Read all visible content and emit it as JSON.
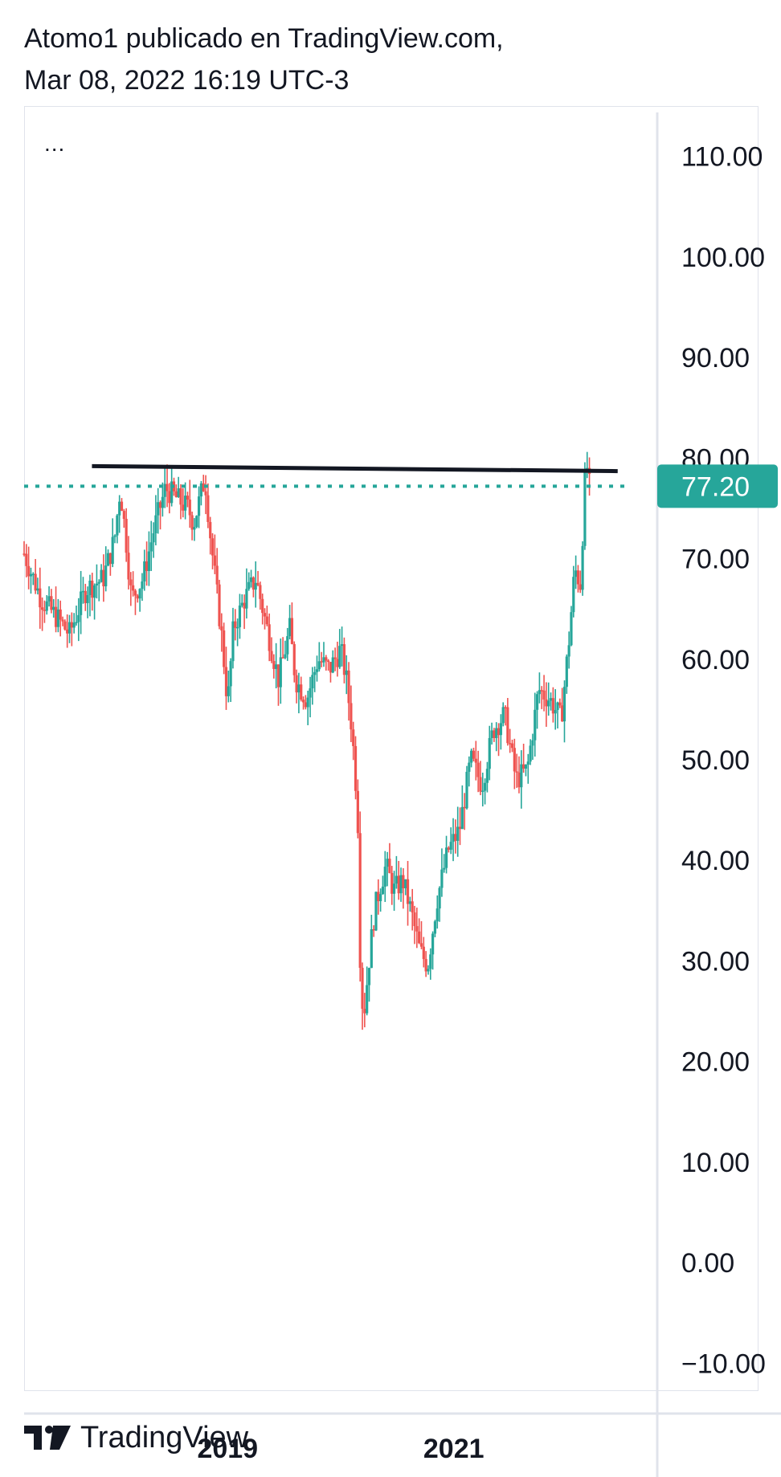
{
  "header": {
    "line1": "Atomo1 publicado en TradingView.com,",
    "line2": "Mar 08, 2022 16:19 UTC-3"
  },
  "toolbar": {
    "menu_label": "..."
  },
  "brand": {
    "name": "TradingView",
    "logo_icon": "tradingview-logo-icon"
  },
  "colors": {
    "up": "#26a69a",
    "down": "#ef5350",
    "trendline": "#131722",
    "last_price": "#26a69a",
    "grid_border": "#e0e3eb"
  },
  "chart_data": {
    "type": "candlestick",
    "title": "",
    "ylim": [
      -15,
      115
    ],
    "y_ticks": [
      "110.00",
      "100.00",
      "90.00",
      "80.00",
      "70.00",
      "60.00",
      "50.00",
      "40.00",
      "30.00",
      "20.00",
      "10.00",
      "0.00",
      "−10.00"
    ],
    "x_ticks": [
      "2019",
      "2021"
    ],
    "x_tick_positions_year": [
      2019.0,
      2021.0
    ],
    "xlim_year": [
      2017.2,
      2022.8
    ],
    "last_price": 77.2,
    "last_price_label": "77.20",
    "trendline": {
      "x1_year": 2017.8,
      "y1": 79.2,
      "x2_year": 2022.45,
      "y2": 78.7
    },
    "series_path": [
      [
        2017.2,
        70.5
      ],
      [
        2017.35,
        66
      ],
      [
        2017.5,
        64
      ],
      [
        2017.6,
        62.5
      ],
      [
        2017.75,
        67
      ],
      [
        2017.9,
        68
      ],
      [
        2018.0,
        72
      ],
      [
        2018.05,
        77
      ],
      [
        2018.1,
        72
      ],
      [
        2018.15,
        66
      ],
      [
        2018.25,
        68
      ],
      [
        2018.35,
        73
      ],
      [
        2018.45,
        77
      ],
      [
        2018.55,
        76
      ],
      [
        2018.65,
        75
      ],
      [
        2018.7,
        73.5
      ],
      [
        2018.8,
        78
      ],
      [
        2018.85,
        72
      ],
      [
        2018.95,
        62
      ],
      [
        2019.0,
        55.5
      ],
      [
        2019.05,
        63
      ],
      [
        2019.15,
        66
      ],
      [
        2019.25,
        68
      ],
      [
        2019.35,
        63
      ],
      [
        2019.45,
        58
      ],
      [
        2019.55,
        63
      ],
      [
        2019.6,
        58
      ],
      [
        2019.7,
        56
      ],
      [
        2019.8,
        60
      ],
      [
        2019.9,
        59
      ],
      [
        2020.0,
        61
      ],
      [
        2020.05,
        58
      ],
      [
        2020.1,
        53
      ],
      [
        2020.15,
        45
      ],
      [
        2020.17,
        31
      ],
      [
        2020.2,
        24
      ],
      [
        2020.25,
        30
      ],
      [
        2020.3,
        35
      ],
      [
        2020.35,
        37.5
      ],
      [
        2020.4,
        39.5
      ],
      [
        2020.47,
        37
      ],
      [
        2020.55,
        38
      ],
      [
        2020.62,
        35
      ],
      [
        2020.7,
        31
      ],
      [
        2020.77,
        29.5
      ],
      [
        2020.85,
        36
      ],
      [
        2020.95,
        41
      ],
      [
        2021.05,
        43
      ],
      [
        2021.15,
        50
      ],
      [
        2021.25,
        47.5
      ],
      [
        2021.35,
        53
      ],
      [
        2021.45,
        54.5
      ],
      [
        2021.55,
        48
      ],
      [
        2021.65,
        49
      ],
      [
        2021.75,
        57
      ],
      [
        2021.85,
        56
      ],
      [
        2021.95,
        54
      ],
      [
        2022.02,
        62
      ],
      [
        2022.07,
        69
      ],
      [
        2022.12,
        67.5
      ],
      [
        2022.17,
        80
      ],
      [
        2022.2,
        77.2
      ]
    ]
  }
}
